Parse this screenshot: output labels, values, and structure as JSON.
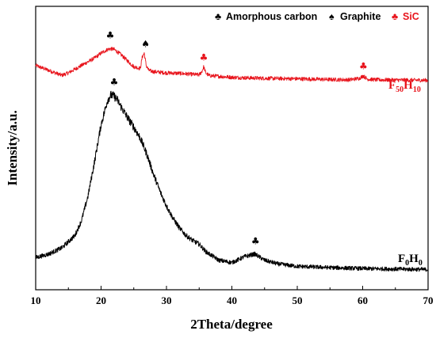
{
  "chart_data": {
    "type": "line",
    "xlabel": "2Theta/degree",
    "ylabel": "Intensity/a.u.",
    "xlim": [
      10,
      70
    ],
    "xticks": [
      10,
      20,
      30,
      40,
      50,
      60,
      70
    ],
    "yticks": [],
    "grid": false,
    "legend": {
      "placement": "top-right",
      "entries": [
        {
          "symbol": "♣",
          "label": "Amorphous carbon",
          "color": "#000000"
        },
        {
          "symbol": "♠",
          "label": "Graphite",
          "color": "#000000"
        },
        {
          "symbol": "♣",
          "label": "SiC",
          "color": "#e8141c"
        }
      ]
    },
    "series": [
      {
        "name": "F50H10",
        "label_main": "F",
        "label_sub1": "50",
        "label_mid": "H",
        "label_sub2": "10",
        "color": "#e8141c",
        "x": [
          10,
          12,
          14,
          15,
          16,
          17,
          18,
          19,
          20,
          21,
          21.5,
          22,
          23,
          24,
          25,
          26,
          26.3,
          26.6,
          26.9,
          27.3,
          28,
          30,
          32,
          34,
          35,
          35.4,
          35.7,
          36,
          36.5,
          38,
          40,
          42,
          45,
          50,
          55,
          58,
          59.5,
          60.1,
          60.7,
          62,
          65,
          70
        ],
        "y": [
          91,
          89,
          87,
          88,
          89.5,
          91,
          92.5,
          94,
          96,
          97.5,
          97.8,
          97.5,
          95.5,
          93,
          90.5,
          89.8,
          94.5,
          96,
          91,
          89,
          88.5,
          88,
          87.8,
          87.4,
          87.2,
          88.5,
          90.5,
          88,
          86.9,
          86.6,
          86.2,
          86,
          85.8,
          85.6,
          85.3,
          85.2,
          85.8,
          86.8,
          85.5,
          85.2,
          85.1,
          85
        ]
      },
      {
        "name": "F0H0",
        "label_main": "F",
        "label_sub1": "0",
        "label_mid": "H",
        "label_sub2": "0",
        "color": "#000000",
        "x": [
          10,
          12,
          14,
          16,
          17,
          18,
          19,
          20,
          21,
          21.5,
          22,
          22.5,
          23,
          24,
          25,
          26,
          27,
          28,
          29,
          30,
          31,
          32,
          33,
          34,
          35,
          36,
          38,
          40,
          42,
          43.5,
          45,
          47,
          50,
          55,
          60,
          65,
          70
        ],
        "y": [
          13,
          14.5,
          17,
          22,
          28,
          38,
          52,
          67,
          77,
          79,
          78.5,
          77,
          74.5,
          70,
          66,
          61.5,
          55,
          47,
          40,
          34,
          29,
          25,
          22,
          20,
          18.5,
          15.5,
          12,
          11,
          13.5,
          14.5,
          12,
          10.5,
          9.5,
          9,
          8.6,
          8.4,
          8.2
        ]
      }
    ],
    "annotations": [
      {
        "symbol": "♣",
        "x": 21.4,
        "y": 102,
        "color": "#000000"
      },
      {
        "symbol": "♠",
        "x": 26.8,
        "y": 98.5,
        "color": "#000000"
      },
      {
        "symbol": "♣",
        "x": 35.7,
        "y": 93,
        "color": "#e8141c"
      },
      {
        "symbol": "♣",
        "x": 60.1,
        "y": 89.5,
        "color": "#e8141c"
      },
      {
        "symbol": "♣",
        "x": 22,
        "y": 83,
        "color": "#000000"
      },
      {
        "symbol": "♣",
        "x": 43.6,
        "y": 18.5,
        "color": "#000000"
      }
    ]
  }
}
